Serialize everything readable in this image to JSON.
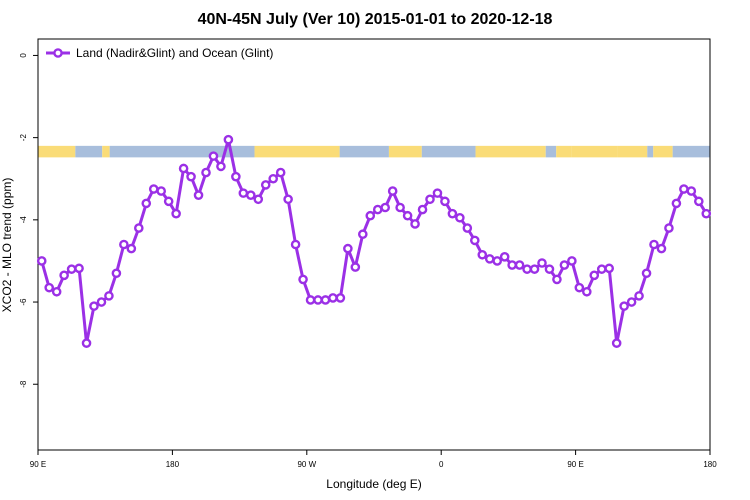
{
  "chart_data": {
    "type": "line",
    "title": "40N-45N July (Ver 10)   2015-01-01 to 2020-12-18",
    "xlabel": "Longitude (deg E)",
    "ylabel": "XCO2 - MLO trend (ppm)",
    "xlim": [
      90,
      540
    ],
    "ylim": [
      -9.6,
      0.4
    ],
    "x_ticks": [
      {
        "value": 90,
        "label": "90 E"
      },
      {
        "value": 180,
        "label": "180"
      },
      {
        "value": 270,
        "label": "90 W"
      },
      {
        "value": 360,
        "label": "0"
      },
      {
        "value": 450,
        "label": "90 E"
      },
      {
        "value": 540,
        "label": "180"
      }
    ],
    "y_ticks": [
      {
        "value": 0,
        "label": "0"
      },
      {
        "value": -2,
        "label": "-2"
      },
      {
        "value": -4,
        "label": "-4"
      },
      {
        "value": -6,
        "label": "-6"
      },
      {
        "value": -8,
        "label": "-8"
      }
    ],
    "legend": {
      "position": "top-left",
      "label": "Land (Nadir&Glint) and Ocean (Glint)"
    },
    "series": [
      {
        "name": "Land (Nadir&Glint) and Ocean (Glint)",
        "color": "#9b30e6",
        "x": [
          92.5,
          97.5,
          102.5,
          107.5,
          112.5,
          117.5,
          122.5,
          127.5,
          132.5,
          137.5,
          142.5,
          147.5,
          152.5,
          157.5,
          162.5,
          167.5,
          172.5,
          177.5,
          182.5,
          187.5,
          192.5,
          197.5,
          202.5,
          207.5,
          212.5,
          217.5,
          222.5,
          227.5,
          232.5,
          237.5,
          242.5,
          247.5,
          252.5,
          257.5,
          262.5,
          267.5,
          272.5,
          277.5,
          282.5,
          287.5,
          292.5,
          297.5,
          302.5,
          307.5,
          312.5,
          317.5,
          322.5,
          327.5,
          332.5,
          337.5,
          342.5,
          347.5,
          352.5,
          357.5,
          362.5,
          367.5,
          372.5,
          377.5,
          382.5,
          387.5,
          392.5,
          397.5,
          402.5,
          407.5,
          412.5,
          417.5,
          422.5,
          427.5,
          432.5,
          437.5,
          442.5,
          447.5,
          452.5,
          457.5,
          462.5,
          467.5,
          472.5,
          477.5,
          482.5,
          487.5,
          492.5,
          497.5,
          502.5,
          507.5,
          512.5,
          517.5,
          522.5,
          527.5,
          532.5,
          537.5
        ],
        "y": [
          -5.0,
          -5.65,
          -5.75,
          -5.35,
          -5.2,
          -5.18,
          -7.0,
          -6.1,
          -6.0,
          -5.85,
          -5.3,
          -4.6,
          -4.7,
          -4.2,
          -3.6,
          -3.25,
          -3.3,
          -3.55,
          -3.85,
          -2.75,
          -2.95,
          -3.4,
          -2.85,
          -2.45,
          -2.7,
          -2.05,
          -2.95,
          -3.35,
          -3.4,
          -3.5,
          -3.15,
          -3.0,
          -2.85,
          -3.5,
          -4.6,
          -5.45,
          -5.95,
          -5.95,
          -5.95,
          -5.9,
          -5.9,
          -4.7,
          -5.15,
          -4.35,
          -3.9,
          -3.75,
          -3.7,
          -3.3,
          -3.7,
          -3.9,
          -4.1,
          -3.75,
          -3.5,
          -3.35,
          -3.55,
          -3.85,
          -3.95,
          -4.2,
          -4.5,
          -4.85,
          -4.95,
          -5.0,
          -4.9,
          -5.1,
          -5.1,
          -5.2,
          -5.2,
          -5.05,
          -5.2,
          -5.45,
          -5.1,
          -5.0,
          -5.65,
          -5.75,
          -5.35,
          -5.2,
          -5.18,
          -7.0,
          -6.1,
          -6.0,
          -5.85,
          -5.3,
          -4.6,
          -4.7,
          -4.2,
          -3.6,
          -3.25,
          -3.3,
          -3.55,
          -3.85
        ]
      }
    ],
    "band": {
      "colors": {
        "ocean": "#a8bedc",
        "land": "#fadc78"
      },
      "y_top": -2.2,
      "y_bottom": -2.48,
      "segments": [
        {
          "x0": 90,
          "x1": 115,
          "type": "land"
        },
        {
          "x0": 115,
          "x1": 133,
          "type": "ocean"
        },
        {
          "x0": 133,
          "x1": 138,
          "type": "land"
        },
        {
          "x0": 138,
          "x1": 235,
          "type": "ocean"
        },
        {
          "x0": 235,
          "x1": 292,
          "type": "land"
        },
        {
          "x0": 292,
          "x1": 325,
          "type": "ocean"
        },
        {
          "x0": 325,
          "x1": 347,
          "type": "land"
        },
        {
          "x0": 347,
          "x1": 383,
          "type": "ocean"
        },
        {
          "x0": 383,
          "x1": 430,
          "type": "land"
        },
        {
          "x0": 430,
          "x1": 437,
          "type": "ocean"
        },
        {
          "x0": 437,
          "x1": 447,
          "type": "land"
        },
        {
          "x0": 447,
          "x1": 478,
          "type": "land"
        },
        {
          "x0": 478,
          "x1": 498,
          "type": "land"
        },
        {
          "x0": 498,
          "x1": 502,
          "type": "ocean"
        },
        {
          "x0": 502,
          "x1": 515,
          "type": "land"
        },
        {
          "x0": 515,
          "x1": 540,
          "type": "ocean"
        }
      ]
    }
  }
}
